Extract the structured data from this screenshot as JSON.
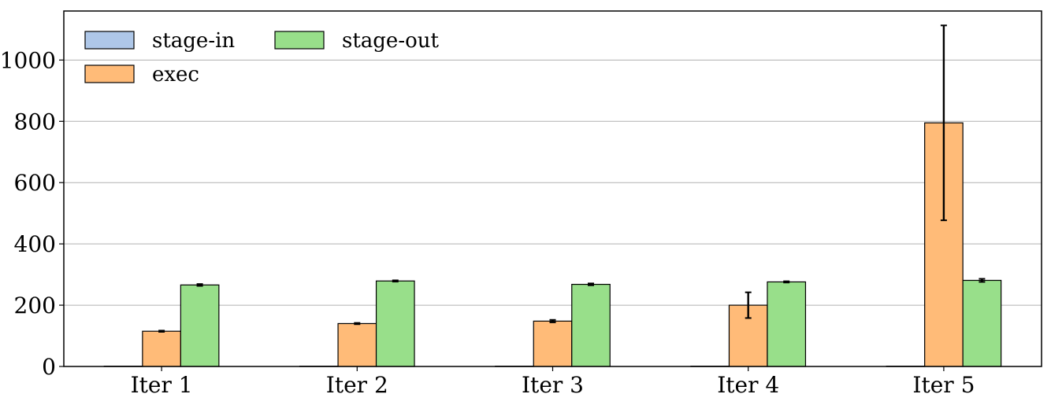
{
  "chart_data": {
    "type": "bar",
    "categories": [
      "Iter 1",
      "Iter 2",
      "Iter 3",
      "Iter 4",
      "Iter 5"
    ],
    "series": [
      {
        "name": "stage-in",
        "color": "#aec7e8",
        "values": [
          1,
          1,
          1,
          1,
          1
        ],
        "errors": [
          0,
          0,
          0,
          0,
          0
        ]
      },
      {
        "name": "exec",
        "color": "#ffbb78",
        "values": [
          115,
          140,
          148,
          200,
          795
        ],
        "errors": [
          2,
          2,
          4,
          42,
          318
        ]
      },
      {
        "name": "stage-out",
        "color": "#98df8a",
        "values": [
          266,
          279,
          268,
          276,
          281
        ],
        "errors": [
          3,
          2,
          3,
          2,
          5
        ]
      }
    ],
    "yticks": [
      0,
      200,
      400,
      600,
      800,
      1000
    ],
    "ylim": [
      0,
      1160
    ],
    "grid": "y",
    "legend_position": "top-left",
    "title": "",
    "xlabel": "",
    "ylabel": ""
  }
}
